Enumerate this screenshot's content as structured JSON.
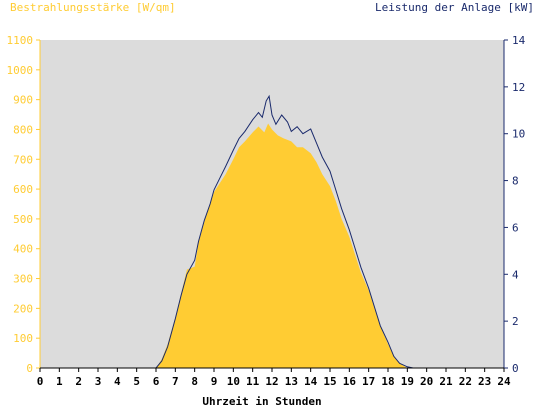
{
  "chart_data": {
    "type": "area",
    "left_axis_title": "Bestrahlungsstärke [W/qm]",
    "right_axis_title": "Leistung der Anlage [kW]",
    "xlabel": "Uhrzeit in Stunden",
    "x_range": [
      0,
      24
    ],
    "x_ticks": [
      "0",
      "1",
      "2",
      "3",
      "4",
      "5",
      "6",
      "7",
      "8",
      "9",
      "10",
      "11",
      "12",
      "13",
      "14",
      "15",
      "16",
      "17",
      "18",
      "19",
      "20",
      "21",
      "22",
      "23",
      "24"
    ],
    "y_left_range": [
      0,
      1100
    ],
    "y_left_ticks": [
      "0",
      "100",
      "200",
      "300",
      "400",
      "500",
      "600",
      "700",
      "800",
      "900",
      "1000",
      "1100"
    ],
    "y_right_range": [
      0,
      14
    ],
    "y_right_ticks": [
      "0",
      "2",
      "4",
      "6",
      "8",
      "10",
      "12",
      "14"
    ],
    "grid": false,
    "colors": {
      "plot_background": "#dcdcdc",
      "irradiance_fill": "#ffcc33",
      "power_line": "#1a2a6c",
      "left_axis_text": "#ffcc33",
      "right_axis_text": "#1a2a6c"
    },
    "series": [
      {
        "axis": "left",
        "style": "area",
        "x": [
          0,
          6.0,
          6.3,
          6.6,
          7.0,
          7.3,
          7.6,
          8.0,
          8.2,
          8.5,
          8.8,
          9.0,
          9.3,
          9.6,
          10.0,
          10.3,
          10.6,
          11.0,
          11.3,
          11.6,
          11.8,
          12.0,
          12.3,
          12.6,
          13.0,
          13.3,
          13.6,
          14.0,
          14.3,
          14.6,
          15.0,
          15.3,
          15.6,
          16.0,
          16.3,
          16.6,
          17.0,
          17.3,
          17.6,
          18.0,
          18.3,
          18.6,
          19.0,
          19.3,
          24
        ],
        "y": [
          0,
          0,
          30,
          80,
          170,
          250,
          330,
          340,
          420,
          490,
          550,
          590,
          620,
          650,
          700,
          740,
          760,
          790,
          810,
          790,
          820,
          800,
          780,
          770,
          760,
          740,
          740,
          720,
          690,
          650,
          610,
          560,
          500,
          440,
          380,
          320,
          260,
          200,
          140,
          80,
          40,
          15,
          0,
          0,
          0
        ]
      },
      {
        "axis": "right",
        "style": "line",
        "x": [
          0,
          6.0,
          6.3,
          6.6,
          7.0,
          7.3,
          7.6,
          8.0,
          8.2,
          8.5,
          8.8,
          9.0,
          9.3,
          9.6,
          10.0,
          10.3,
          10.6,
          11.0,
          11.3,
          11.5,
          11.7,
          11.85,
          12.0,
          12.2,
          12.5,
          12.8,
          13.0,
          13.3,
          13.6,
          14.0,
          14.3,
          14.6,
          15.0,
          15.3,
          15.6,
          16.0,
          16.3,
          16.6,
          17.0,
          17.3,
          17.6,
          18.0,
          18.3,
          18.6,
          19.0,
          19.3,
          24
        ],
        "y": [
          0,
          0,
          0.3,
          0.9,
          2.1,
          3.1,
          4.0,
          4.6,
          5.4,
          6.3,
          7.0,
          7.6,
          8.1,
          8.6,
          9.3,
          9.8,
          10.1,
          10.6,
          10.9,
          10.7,
          11.4,
          11.6,
          10.8,
          10.4,
          10.8,
          10.5,
          10.1,
          10.3,
          10.0,
          10.2,
          9.6,
          9.0,
          8.4,
          7.6,
          6.8,
          5.9,
          5.1,
          4.3,
          3.4,
          2.6,
          1.8,
          1.1,
          0.5,
          0.2,
          0.05,
          0,
          0
        ]
      }
    ]
  }
}
